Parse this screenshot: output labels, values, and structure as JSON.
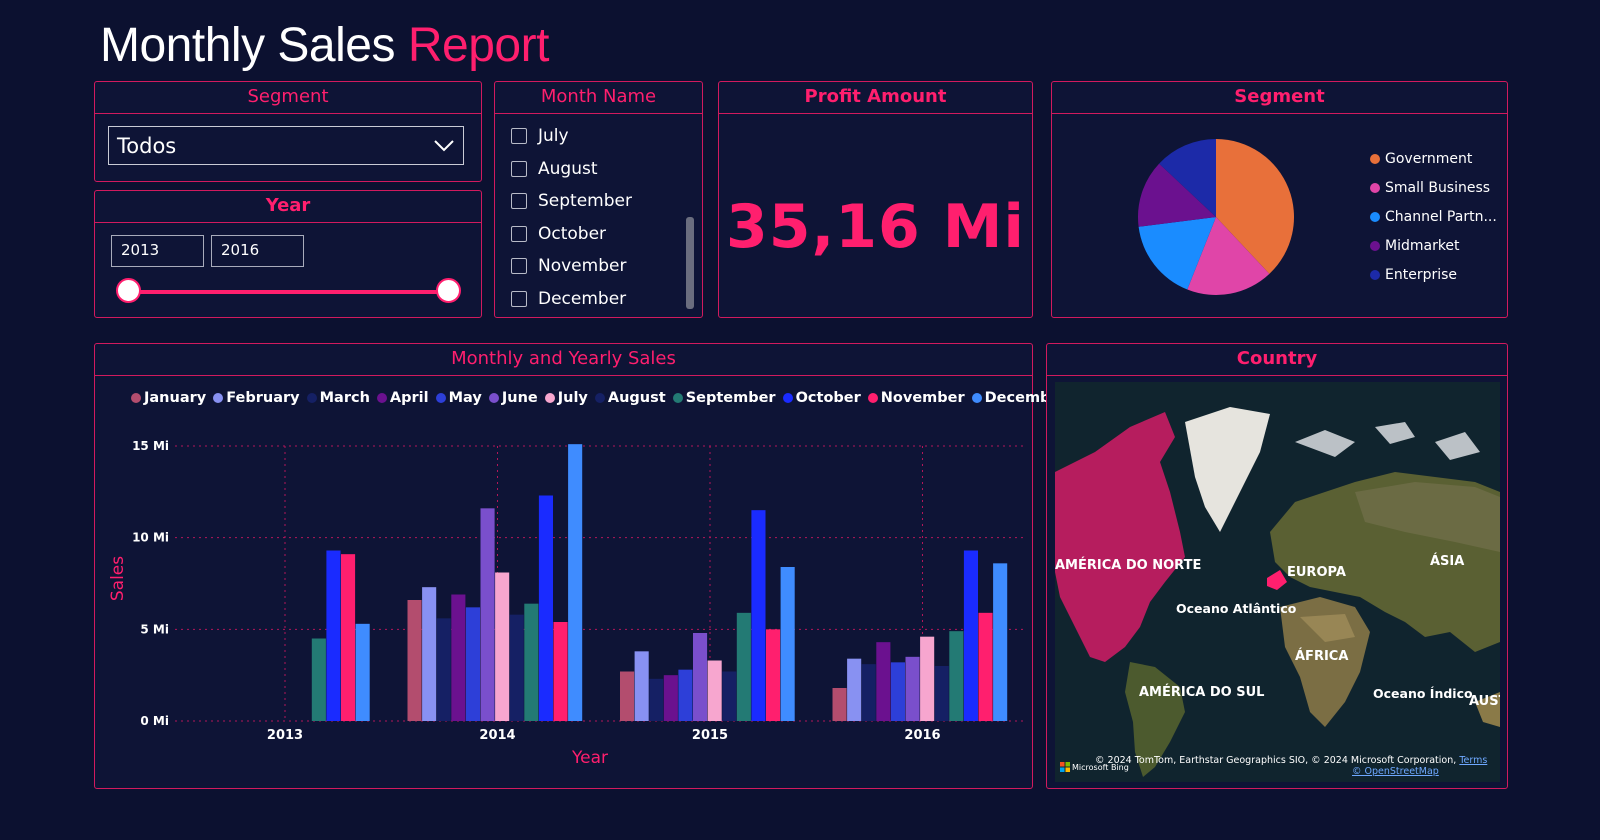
{
  "header": {
    "title_main": "Monthly Sales",
    "title_accent": "Report"
  },
  "segment_slicer": {
    "title": "Segment",
    "selected": "Todos"
  },
  "year_slicer": {
    "title": "Year",
    "start": "2013",
    "end": "2016"
  },
  "month_slicer": {
    "title": "Month Name",
    "items": [
      "July",
      "August",
      "September",
      "October",
      "November",
      "December"
    ]
  },
  "profit_card": {
    "title": "Profit Amount",
    "value": "35,16 Mi"
  },
  "segment_pie": {
    "title": "Segment",
    "slices": [
      {
        "label": "Government",
        "value": 38,
        "color": "#e8703a"
      },
      {
        "label": "Small Business",
        "value": 18,
        "color": "#e045a8"
      },
      {
        "label": "Channel Partn...",
        "value": 17,
        "color": "#1a8cff"
      },
      {
        "label": "Midmarket",
        "value": 14,
        "color": "#6b118f"
      },
      {
        "label": "Enterprise",
        "value": 13,
        "color": "#1c2aa8"
      }
    ]
  },
  "sales_chart_card": {
    "title": "Monthly and Yearly Sales"
  },
  "chart_data": {
    "type": "bar",
    "title": "Monthly and Yearly Sales",
    "xlabel": "Year",
    "ylabel": "Sales",
    "categories": [
      "2013",
      "2014",
      "2015",
      "2016"
    ],
    "ylim": [
      0,
      15
    ],
    "yticks": [
      0,
      5,
      10,
      15
    ],
    "ytick_labels": [
      "0 Mi",
      "5 Mi",
      "10 Mi",
      "15 Mi"
    ],
    "series": [
      {
        "name": "January",
        "color": "#b34d6e",
        "values": [
          null,
          6.6,
          2.7,
          1.8
        ]
      },
      {
        "name": "February",
        "color": "#8891f2",
        "values": [
          null,
          7.3,
          3.8,
          3.4
        ]
      },
      {
        "name": "March",
        "color": "#152064",
        "values": [
          null,
          5.6,
          2.3,
          3.1
        ]
      },
      {
        "name": "April",
        "color": "#6b118f",
        "values": [
          null,
          6.9,
          2.5,
          4.3
        ]
      },
      {
        "name": "May",
        "color": "#2d3fd8",
        "values": [
          null,
          6.2,
          2.8,
          3.2
        ]
      },
      {
        "name": "June",
        "color": "#7a4fcc",
        "values": [
          null,
          11.6,
          4.8,
          3.5
        ]
      },
      {
        "name": "July",
        "color": "#f7a6cf",
        "values": [
          null,
          8.1,
          3.3,
          4.6
        ]
      },
      {
        "name": "August",
        "color": "#152064",
        "values": [
          null,
          5.8,
          2.7,
          3.0
        ]
      },
      {
        "name": "September",
        "color": "#237a74",
        "values": [
          4.5,
          6.4,
          5.9,
          4.9
        ]
      },
      {
        "name": "October",
        "color": "#1a2bff",
        "values": [
          9.3,
          12.3,
          11.5,
          9.3
        ]
      },
      {
        "name": "November",
        "color": "#ff1f6e",
        "values": [
          9.1,
          5.4,
          5.0,
          5.9
        ]
      },
      {
        "name": "December",
        "color": "#3f8cff",
        "values": [
          5.3,
          15.1,
          8.4,
          8.6
        ]
      }
    ]
  },
  "country_map": {
    "title": "Country",
    "labels": {
      "north_america": "AMÉRICA DO NORTE",
      "europe": "EUROPA",
      "asia": "ÁSIA",
      "atlantic": "Oceano Atlântico",
      "africa": "ÁFRICA",
      "south_america": "AMÉRICA DO SUL",
      "indian": "Oceano Índico",
      "australia": "AUST"
    },
    "attribution": "© 2024 TomTom, Earthstar Geographics SIO, © 2024 Microsoft Corporation,",
    "terms": "Terms",
    "osm": "© OpenStreetMap",
    "bing": "Microsoft Bing"
  }
}
